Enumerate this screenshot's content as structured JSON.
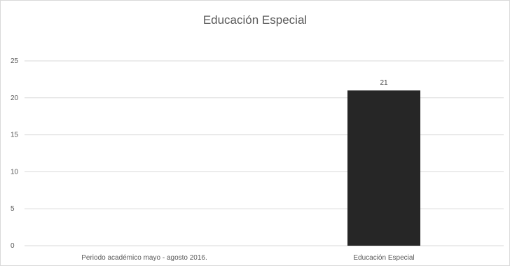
{
  "chart_data": {
    "type": "bar",
    "title": "Educación Especial",
    "categories": [
      "Periodo académico mayo - agosto 2016.",
      "Educación Especial"
    ],
    "values": [
      0,
      21
    ],
    "data_labels": [
      "",
      "21"
    ],
    "ylim": [
      0,
      25
    ],
    "yticks": [
      "0",
      "5",
      "10",
      "15",
      "20",
      "25"
    ],
    "xlabel": "",
    "ylabel": "",
    "grid": true,
    "legend": "none",
    "bar_color": "#262626",
    "grid_color": "#d9d9d9"
  }
}
